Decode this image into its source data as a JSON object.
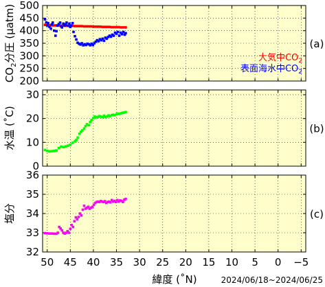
{
  "colors": {
    "plot_background": "#ffffcc",
    "atmosphere": "#ff0000",
    "seawater": "#0000ff",
    "temperature": "#00ff00",
    "salinity": "#ff00ff"
  },
  "x_axis": {
    "label": "緯度 (˚N)",
    "range": [
      51,
      -6
    ],
    "ticks": [
      50,
      45,
      40,
      35,
      30,
      25,
      20,
      15,
      10,
      5,
      0,
      -5
    ],
    "tick_labels": [
      "50",
      "45",
      "40",
      "35",
      "30",
      "25",
      "20",
      "15",
      "10",
      "5",
      "0",
      "−5"
    ]
  },
  "date_range": "2024/06/18~2024/06/25",
  "chart_data": [
    {
      "type": "scatter",
      "panel_label": "(a)",
      "ylabel_parts": [
        "CO",
        "2",
        "分圧 (µatm)"
      ],
      "ylim": [
        200,
        500
      ],
      "yticks": [
        200,
        250,
        300,
        350,
        400,
        450,
        500
      ],
      "legend": [
        {
          "text": "大気中CO",
          "sub": "2",
          "color": "#ff0000"
        },
        {
          "text": "表面海水中CO",
          "sub": "2",
          "color": "#0000ff"
        }
      ],
      "legend_position": "right",
      "series": [
        {
          "name": "大気中CO2",
          "color": "#ff0000",
          "points": [
            [
              50.5,
              423
            ],
            [
              50,
              422
            ],
            [
              49.5,
              422
            ],
            [
              49,
              421
            ],
            [
              48.5,
              421
            ],
            [
              48,
              421
            ],
            [
              47.5,
              420
            ],
            [
              47,
              420
            ],
            [
              46.5,
              420
            ],
            [
              46,
              419
            ],
            [
              45.5,
              419
            ],
            [
              45,
              419
            ],
            [
              44.5,
              419
            ],
            [
              44,
              418
            ],
            [
              43.5,
              418
            ],
            [
              43,
              418
            ],
            [
              42.5,
              418
            ],
            [
              42,
              417
            ],
            [
              41.5,
              417
            ],
            [
              41,
              417
            ],
            [
              40.5,
              417
            ],
            [
              40,
              416
            ],
            [
              39.5,
              416
            ],
            [
              39,
              416
            ],
            [
              38.5,
              416
            ],
            [
              38,
              415
            ],
            [
              37.5,
              415
            ],
            [
              37,
              415
            ],
            [
              36.5,
              415
            ],
            [
              36,
              414
            ],
            [
              35.5,
              414
            ],
            [
              35,
              414
            ],
            [
              34.5,
              414
            ],
            [
              34,
              413
            ],
            [
              33.5,
              413
            ],
            [
              33,
              413
            ]
          ]
        },
        {
          "name": "表面海水中CO2",
          "color": "#0000ff",
          "points": [
            [
              50.5,
              445
            ],
            [
              50.2,
              433
            ],
            [
              50,
              420
            ],
            [
              49.8,
              430
            ],
            [
              49.5,
              415
            ],
            [
              49.2,
              408
            ],
            [
              49,
              425
            ],
            [
              48.8,
              432
            ],
            [
              48.5,
              400
            ],
            [
              48.2,
              380
            ],
            [
              48,
              398
            ],
            [
              47.8,
              420
            ],
            [
              47.5,
              426
            ],
            [
              47.2,
              432
            ],
            [
              47,
              418
            ],
            [
              46.8,
              413
            ],
            [
              46.5,
              428
            ],
            [
              46.2,
              420
            ],
            [
              46,
              425
            ],
            [
              45.8,
              432
            ],
            [
              45.5,
              420
            ],
            [
              45.2,
              428
            ],
            [
              45,
              415
            ],
            [
              44.8,
              420
            ],
            [
              44.5,
              430
            ],
            [
              44.3,
              395
            ],
            [
              44,
              378
            ],
            [
              43.7,
              365
            ],
            [
              43.4,
              352
            ],
            [
              43.1,
              348
            ],
            [
              42.8,
              345
            ],
            [
              42.5,
              350
            ],
            [
              42.2,
              342
            ],
            [
              41.9,
              346
            ],
            [
              41.6,
              343
            ],
            [
              41.3,
              348
            ],
            [
              41,
              346
            ],
            [
              40.7,
              342
            ],
            [
              40.4,
              348
            ],
            [
              40.1,
              343
            ],
            [
              39.8,
              350
            ],
            [
              39.5,
              356
            ],
            [
              39.2,
              362
            ],
            [
              38.9,
              358
            ],
            [
              38.6,
              366
            ],
            [
              38.3,
              362
            ],
            [
              38,
              368
            ],
            [
              37.7,
              360
            ],
            [
              37.4,
              372
            ],
            [
              37.1,
              368
            ],
            [
              36.8,
              375
            ],
            [
              36.5,
              380
            ],
            [
              36.2,
              376
            ],
            [
              35.9,
              384
            ],
            [
              35.6,
              380
            ],
            [
              35.3,
              392
            ],
            [
              35,
              388
            ],
            [
              34.7,
              395
            ],
            [
              34.4,
              380
            ],
            [
              34.1,
              392
            ],
            [
              33.8,
              386
            ],
            [
              33.5,
              395
            ],
            [
              33.2,
              384
            ],
            [
              33,
              390
            ]
          ]
        }
      ]
    },
    {
      "type": "scatter",
      "panel_label": "(b)",
      "ylabel": "水温 (˚C)",
      "ylim": [
        0,
        32
      ],
      "yticks": [
        0,
        10,
        20,
        30
      ],
      "series": [
        {
          "color": "#00ff00",
          "points": [
            [
              50.5,
              6.8
            ],
            [
              50,
              6.4
            ],
            [
              49.5,
              6.2
            ],
            [
              49,
              6.3
            ],
            [
              48.5,
              6.4
            ],
            [
              48,
              6.6
            ],
            [
              47.5,
              7.6
            ],
            [
              47,
              8.2
            ],
            [
              46.5,
              8.0
            ],
            [
              46,
              8.3
            ],
            [
              45.5,
              8.6
            ],
            [
              45,
              9.0
            ],
            [
              44.5,
              9.8
            ],
            [
              44,
              10.4
            ],
            [
              43.7,
              11.0
            ],
            [
              43.4,
              12.0
            ],
            [
              43,
              13.6
            ],
            [
              42.7,
              14.4
            ],
            [
              42.4,
              15.0
            ],
            [
              42,
              15.8
            ],
            [
              41.7,
              16.8
            ],
            [
              41.4,
              17.6
            ],
            [
              41,
              17.2
            ],
            [
              40.7,
              18.6
            ],
            [
              40.4,
              19.4
            ],
            [
              40,
              20.2
            ],
            [
              39.7,
              20.8
            ],
            [
              39.4,
              20.5
            ],
            [
              39,
              20.7
            ],
            [
              38.7,
              21.0
            ],
            [
              38.4,
              20.8
            ],
            [
              38,
              20.6
            ],
            [
              37.7,
              21.2
            ],
            [
              37.4,
              20.6
            ],
            [
              37,
              20.9
            ],
            [
              36.7,
              21.3
            ],
            [
              36.4,
              21.0
            ],
            [
              36,
              21.4
            ],
            [
              35.7,
              21.6
            ],
            [
              35.4,
              21.4
            ],
            [
              35,
              21.8
            ],
            [
              34.7,
              22.1
            ],
            [
              34.4,
              21.9
            ],
            [
              34,
              22.2
            ],
            [
              33.7,
              22.4
            ],
            [
              33.4,
              22.5
            ],
            [
              33,
              22.7
            ]
          ]
        }
      ]
    },
    {
      "type": "scatter",
      "panel_label": "(c)",
      "ylabel": "塩分",
      "ylim": [
        32,
        36
      ],
      "yticks": [
        32,
        33,
        34,
        35,
        36
      ],
      "series": [
        {
          "color": "#ff00ff",
          "points": [
            [
              50.5,
              32.98
            ],
            [
              50,
              32.97
            ],
            [
              49.5,
              32.96
            ],
            [
              49,
              32.96
            ],
            [
              48.5,
              32.95
            ],
            [
              48,
              32.95
            ],
            [
              47.7,
              33.0
            ],
            [
              47.4,
              33.3
            ],
            [
              47.1,
              33.22
            ],
            [
              46.8,
              33.12
            ],
            [
              46.5,
              33.0
            ],
            [
              46.2,
              32.96
            ],
            [
              45.9,
              33.0
            ],
            [
              45.6,
              33.08
            ],
            [
              45.3,
              33.0
            ],
            [
              45,
              33.2
            ],
            [
              44.7,
              33.4
            ],
            [
              44.4,
              33.3
            ],
            [
              44.1,
              33.6
            ],
            [
              43.8,
              33.8
            ],
            [
              43.5,
              33.7
            ],
            [
              43.2,
              33.82
            ],
            [
              42.9,
              34.0
            ],
            [
              42.6,
              33.9
            ],
            [
              42.3,
              34.2
            ],
            [
              42,
              34.4
            ],
            [
              41.7,
              34.25
            ],
            [
              41.4,
              34.3
            ],
            [
              41.1,
              34.35
            ],
            [
              40.8,
              34.25
            ],
            [
              40.5,
              34.3
            ],
            [
              40.2,
              34.35
            ],
            [
              39.9,
              34.45
            ],
            [
              39.6,
              34.55
            ],
            [
              39.3,
              34.6
            ],
            [
              39,
              34.62
            ],
            [
              38.7,
              34.6
            ],
            [
              38.4,
              34.65
            ],
            [
              38.1,
              34.62
            ],
            [
              37.8,
              34.6
            ],
            [
              37.5,
              34.64
            ],
            [
              37.2,
              34.55
            ],
            [
              36.9,
              34.6
            ],
            [
              36.6,
              34.62
            ],
            [
              36.3,
              34.58
            ],
            [
              36,
              34.7
            ],
            [
              35.7,
              34.62
            ],
            [
              35.4,
              34.66
            ],
            [
              35.1,
              34.6
            ],
            [
              34.8,
              34.7
            ],
            [
              34.5,
              34.62
            ],
            [
              34.2,
              34.68
            ],
            [
              33.9,
              34.66
            ],
            [
              33.6,
              34.6
            ],
            [
              33.3,
              34.72
            ],
            [
              33,
              34.76
            ]
          ]
        }
      ]
    }
  ]
}
